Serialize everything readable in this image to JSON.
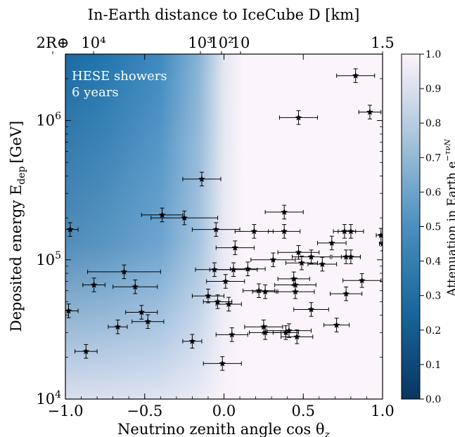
{
  "chart_data": {
    "type": "scatter",
    "xlabel": "Neutrino zenith angle cos θ",
    "xlabel_sub": "z",
    "ylabel": "Deposited energy E",
    "ylabel_sub": "dep",
    "ylabel_unit": "[GeV]",
    "top_axis_label": "In-Earth distance to IceCube D [km]",
    "xlim": [
      -1.0,
      1.0
    ],
    "ylim": [
      10000,
      3000000
    ],
    "yscale": "log",
    "x_ticks": [
      {
        "value": -1.0,
        "label": "−1.0"
      },
      {
        "value": -0.5,
        "label": "−0.5"
      },
      {
        "value": 0.0,
        "label": "0.0"
      },
      {
        "value": 0.5,
        "label": "0.5"
      },
      {
        "value": 1.0,
        "label": "1.0"
      }
    ],
    "y_ticks": [
      {
        "value": 10000,
        "base": "10",
        "exp": "4"
      },
      {
        "value": 100000,
        "base": "10",
        "exp": "5"
      },
      {
        "value": 1000000,
        "base": "10",
        "exp": "6"
      }
    ],
    "top_ticks": [
      {
        "label": "2R⊕"
      },
      {
        "label": "10⁴"
      },
      {
        "label": "10³"
      },
      {
        "label": "10²"
      },
      {
        "label": "10"
      },
      {
        "label": "1.5"
      }
    ],
    "annotation": [
      "HESE showers",
      "6 years"
    ],
    "colorbar": {
      "label": "Attenuation in Earth e",
      "label_sup": "−τνN",
      "range": [
        0.0,
        1.0
      ],
      "ticks": [
        "0.0",
        "0.1",
        "0.2",
        "0.3",
        "0.4",
        "0.5",
        "0.6",
        "0.7",
        "0.8",
        "0.9",
        "1.0"
      ],
      "colormap": [
        "#0a3560",
        "#18669a",
        "#4a8fbf",
        "#a6c3da",
        "#fcf4fb"
      ]
    },
    "marker_color": "#000000",
    "points": [
      {
        "x": 0.83,
        "y": 2100000,
        "xerr": 0.12
      },
      {
        "x": 0.92,
        "y": 1150000,
        "xerr": 0.07
      },
      {
        "x": 0.47,
        "y": 1050000,
        "xerr": 0.12
      },
      {
        "x": -0.14,
        "y": 380000,
        "xerr": 0.12
      },
      {
        "x": -0.39,
        "y": 210000,
        "xerr": 0.13
      },
      {
        "x": -0.25,
        "y": 200000,
        "xerr": 0.21
      },
      {
        "x": 0.38,
        "y": 220000,
        "xerr": 0.12
      },
      {
        "x": -0.97,
        "y": 165000,
        "xerr": 0.05
      },
      {
        "x": -0.05,
        "y": 165000,
        "xerr": 0.15
      },
      {
        "x": 0.19,
        "y": 160000,
        "xerr": 0.12
      },
      {
        "x": 0.38,
        "y": 160000,
        "xerr": 0.1
      },
      {
        "x": 0.76,
        "y": 160000,
        "xerr": 0.07
      },
      {
        "x": 0.8,
        "y": 160000,
        "xerr": 0.08
      },
      {
        "x": 0.99,
        "y": 150000,
        "xerr": 0.03
      },
      {
        "x": 0.07,
        "y": 122000,
        "xerr": 0.12
      },
      {
        "x": 0.68,
        "y": 132000,
        "xerr": 0.09
      },
      {
        "x": 0.47,
        "y": 113000,
        "xerr": 0.13
      },
      {
        "x": 0.55,
        "y": 105000,
        "xerr": 0.12
      },
      {
        "x": 0.77,
        "y": 105000,
        "xerr": 0.09
      },
      {
        "x": 0.8,
        "y": 105000,
        "xerr": 0.06
      },
      {
        "x": 0.31,
        "y": 100000,
        "xerr": 0.14
      },
      {
        "x": 0.49,
        "y": 95000,
        "xerr": 0.1
      },
      {
        "x": 0.62,
        "y": 93000,
        "xerr": 0.09
      },
      {
        "x": 1.0,
        "y": 130000,
        "xerr": 0.02
      },
      {
        "x": -0.63,
        "y": 82000,
        "xerr": 0.23
      },
      {
        "x": -0.06,
        "y": 85000,
        "xerr": 0.12
      },
      {
        "x": 0.06,
        "y": 85000,
        "xerr": 0.15
      },
      {
        "x": 0.15,
        "y": 86000,
        "xerr": 0.11
      },
      {
        "x": -0.56,
        "y": 64000,
        "xerr": 0.14
      },
      {
        "x": -0.82,
        "y": 66000,
        "xerr": 0.07
      },
      {
        "x": 0.01,
        "y": 70000,
        "xerr": 0.12
      },
      {
        "x": 0.44,
        "y": 73000,
        "xerr": 0.1
      },
      {
        "x": 0.45,
        "y": 66000,
        "xerr": 0.13
      },
      {
        "x": 0.87,
        "y": 71000,
        "xerr": 0.12
      },
      {
        "x": 0.22,
        "y": 60000,
        "xerr": 0.1
      },
      {
        "x": 0.26,
        "y": 59000,
        "xerr": 0.08
      },
      {
        "x": 0.45,
        "y": 59000,
        "xerr": 0.12
      },
      {
        "x": 0.77,
        "y": 57000,
        "xerr": 0.1
      },
      {
        "x": -0.1,
        "y": 55000,
        "xerr": 0.1
      },
      {
        "x": -0.04,
        "y": 50000,
        "xerr": 0.09
      },
      {
        "x": 0.03,
        "y": 48000,
        "xerr": 0.08
      },
      {
        "x": -0.98,
        "y": 43000,
        "xerr": 0.06
      },
      {
        "x": -0.52,
        "y": 42000,
        "xerr": 0.1
      },
      {
        "x": 0.55,
        "y": 44000,
        "xerr": 0.11
      },
      {
        "x": -0.48,
        "y": 36000,
        "xerr": 0.1
      },
      {
        "x": -0.67,
        "y": 33000,
        "xerr": 0.06
      },
      {
        "x": 0.25,
        "y": 33000,
        "xerr": 0.12
      },
      {
        "x": 0.71,
        "y": 34000,
        "xerr": 0.08
      },
      {
        "x": 0.41,
        "y": 31000,
        "xerr": 0.14
      },
      {
        "x": 0.26,
        "y": 30000,
        "xerr": 0.1
      },
      {
        "x": 0.39,
        "y": 30000,
        "xerr": 0.08
      },
      {
        "x": 0.05,
        "y": 29000,
        "xerr": 0.1
      },
      {
        "x": 0.46,
        "y": 28000,
        "xerr": 0.1
      },
      {
        "x": -0.2,
        "y": 26000,
        "xerr": 0.06
      },
      {
        "x": -0.87,
        "y": 22000,
        "xerr": 0.07
      },
      {
        "x": -0.01,
        "y": 18000,
        "xerr": 0.12
      }
    ]
  }
}
